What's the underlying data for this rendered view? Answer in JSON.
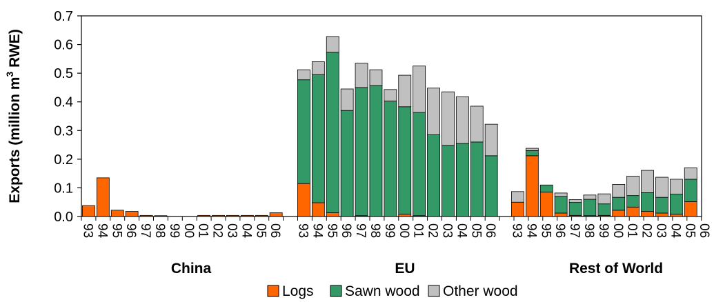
{
  "chart_data": {
    "type": "bar",
    "stacked": true,
    "ylabel_prefix": "Exports (million m",
    "ylabel_sup": "3",
    "ylabel_suffix": " RWE)",
    "ylim": [
      0,
      0.7
    ],
    "yticks": [
      "0.0",
      "0.1",
      "0.2",
      "0.3",
      "0.4",
      "0.5",
      "0.6",
      "0.7"
    ],
    "grid": false,
    "legend_position": "bottom",
    "colors": {
      "Logs": "#ff6600",
      "Sawn wood": "#339966",
      "Other wood": "#c0c0c0"
    },
    "groups": [
      {
        "name": "China",
        "categories": [
          "93",
          "94",
          "95",
          "96",
          "97",
          "98",
          "99",
          "00",
          "01",
          "02",
          "03",
          "04",
          "05",
          "06"
        ],
        "series": [
          {
            "name": "Logs",
            "values": [
              0.038,
              0.135,
              0.022,
              0.018,
              0.004,
              0.003,
              0.0,
              0.0,
              0.004,
              0.004,
              0.004,
              0.004,
              0.004,
              0.013
            ]
          },
          {
            "name": "Sawn wood",
            "values": [
              0,
              0,
              0,
              0,
              0,
              0,
              0,
              0,
              0,
              0,
              0,
              0,
              0,
              0
            ]
          },
          {
            "name": "Other wood",
            "values": [
              0,
              0,
              0,
              0,
              0,
              0,
              0,
              0,
              0,
              0,
              0,
              0,
              0,
              0
            ]
          }
        ]
      },
      {
        "name": "EU",
        "categories": [
          "93",
          "94",
          "95",
          "96",
          "97",
          "98",
          "99",
          "00",
          "01",
          "02",
          "03",
          "04",
          "05",
          "06"
        ],
        "series": [
          {
            "name": "Logs",
            "values": [
              0.115,
              0.048,
              0.013,
              0.0,
              0.003,
              0.0,
              0.0,
              0.008,
              0.003,
              0.0,
              0.0,
              0.0,
              0.0,
              0.0
            ]
          },
          {
            "name": "Sawn wood",
            "values": [
              0.362,
              0.447,
              0.56,
              0.37,
              0.447,
              0.457,
              0.403,
              0.375,
              0.36,
              0.285,
              0.248,
              0.255,
              0.26,
              0.212
            ]
          },
          {
            "name": "Other wood",
            "values": [
              0.035,
              0.045,
              0.055,
              0.075,
              0.085,
              0.055,
              0.04,
              0.11,
              0.162,
              0.163,
              0.187,
              0.163,
              0.125,
              0.11
            ]
          }
        ]
      },
      {
        "name": "Rest of World",
        "categories": [
          "93",
          "94",
          "95",
          "96",
          "97",
          "98",
          "99",
          "00",
          "01",
          "02",
          "03",
          "04",
          "05",
          "06"
        ],
        "series": [
          {
            "name": "Logs",
            "values": [
              0.05,
              0.212,
              0.085,
              0.012,
              0.004,
              0.003,
              0.004,
              0.022,
              0.033,
              0.018,
              0.012,
              0.008,
              0.052,
              0.0
            ]
          },
          {
            "name": "Sawn wood",
            "values": [
              0.0,
              0.018,
              0.025,
              0.058,
              0.045,
              0.057,
              0.04,
              0.045,
              0.04,
              0.065,
              0.055,
              0.07,
              0.078,
              0.0
            ]
          },
          {
            "name": "Other wood",
            "values": [
              0.037,
              0.008,
              0.0,
              0.012,
              0.01,
              0.015,
              0.035,
              0.045,
              0.068,
              0.078,
              0.07,
              0.052,
              0.04,
              0.0
            ]
          }
        ]
      }
    ],
    "legend": [
      "Logs",
      "Sawn wood",
      "Other wood"
    ]
  }
}
